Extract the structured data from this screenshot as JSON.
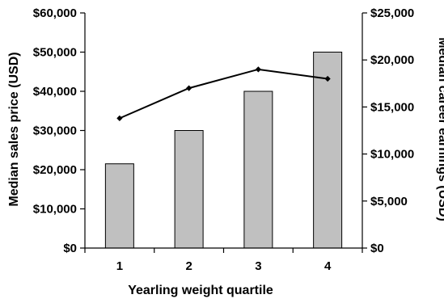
{
  "chart_data": {
    "type": "bar",
    "xlabel": "Yearling weight quartile",
    "categories": [
      "1",
      "2",
      "3",
      "4"
    ],
    "y_left": {
      "label": "Median sales price (USD)",
      "ylim": [
        0,
        60000
      ],
      "ticks": [
        0,
        10000,
        20000,
        30000,
        40000,
        50000,
        60000
      ],
      "tick_labels": [
        "$0",
        "$10,000",
        "$20,000",
        "$30,000",
        "$40,000",
        "$50,000",
        "$60,000"
      ]
    },
    "y_right": {
      "label": "Median career earnings (USD)",
      "ylim": [
        0,
        25000
      ],
      "ticks": [
        0,
        5000,
        10000,
        15000,
        20000,
        25000
      ],
      "tick_labels": [
        "$0",
        "$5,000",
        "$10,000",
        "$15,000",
        "$20,000",
        "$25,000"
      ]
    },
    "series": [
      {
        "type": "bar",
        "axis": "left",
        "values": [
          21500,
          30000,
          40000,
          50000
        ],
        "color": "#c0c0c0"
      },
      {
        "type": "line",
        "axis": "right",
        "values": [
          13800,
          17000,
          19000,
          18000
        ],
        "color": "#000000"
      }
    ],
    "grid": false,
    "legend": "none"
  }
}
